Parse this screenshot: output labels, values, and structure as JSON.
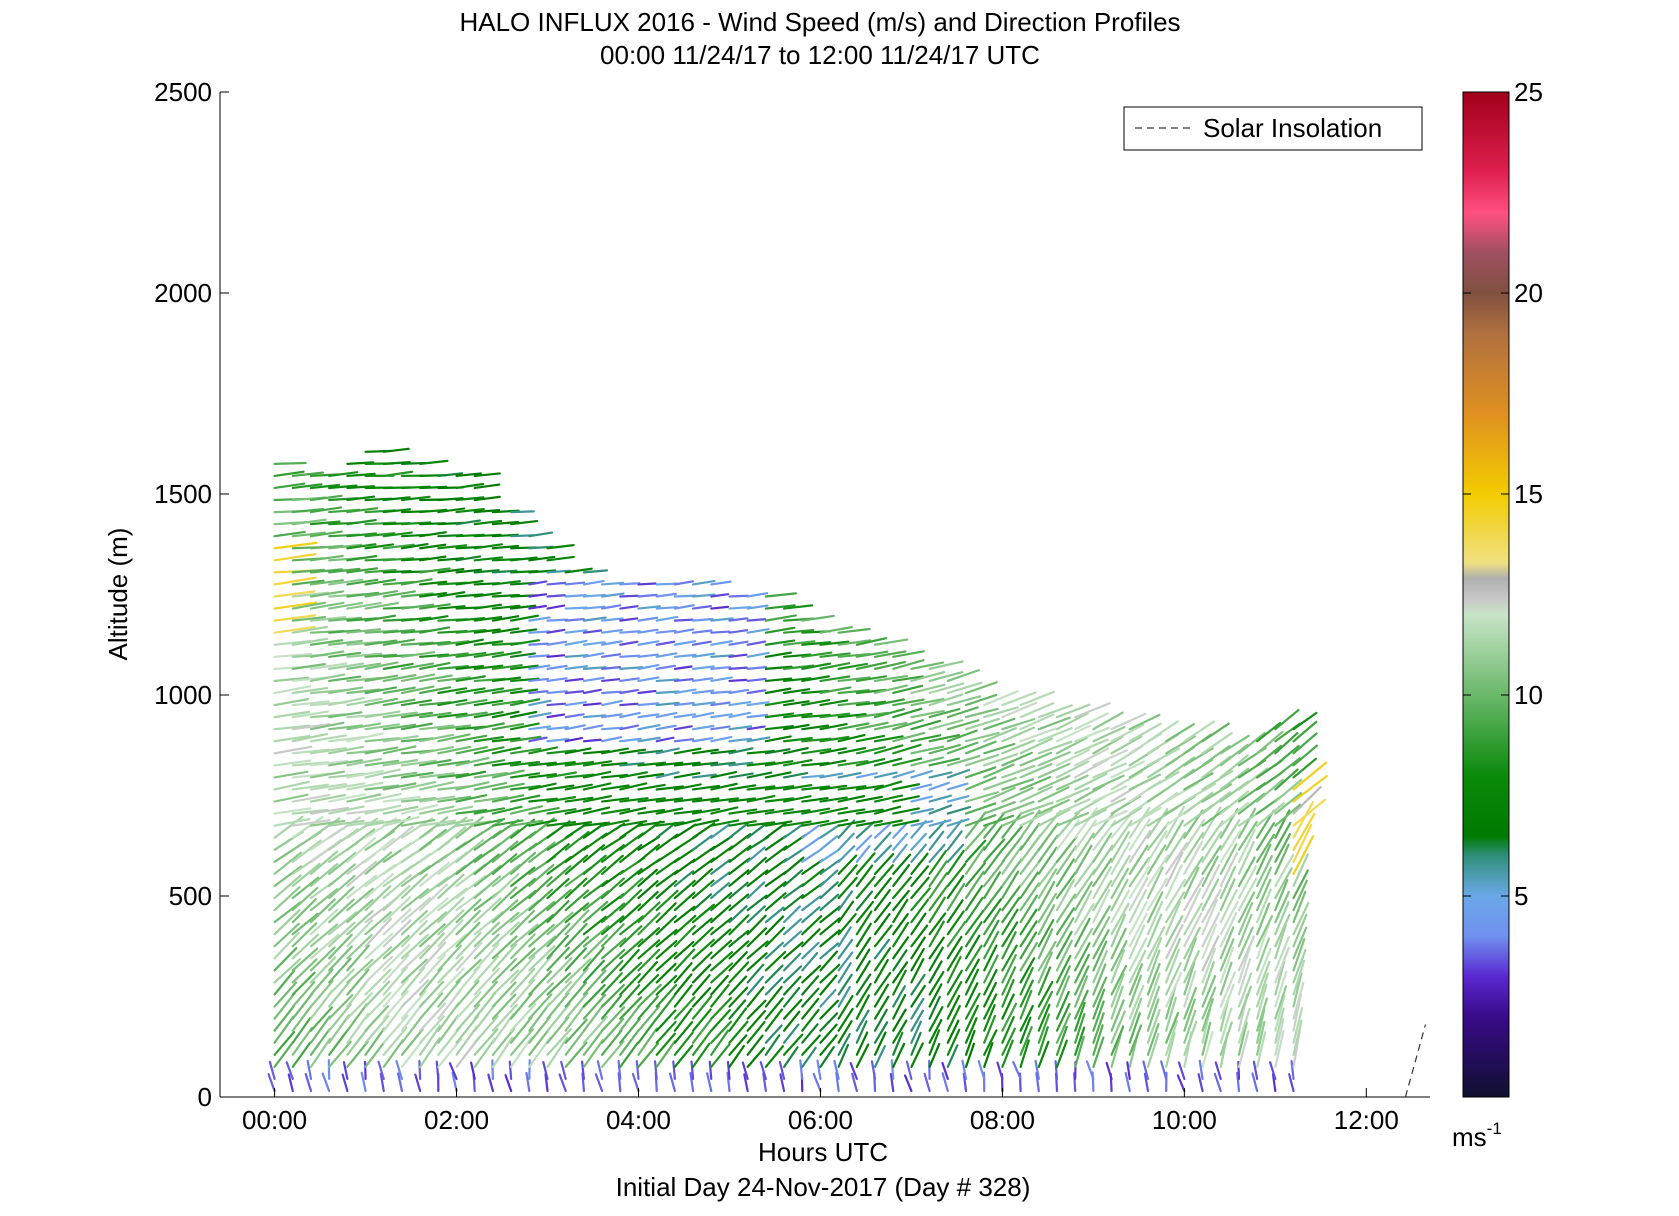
{
  "chart_data": {
    "type": "vector-field",
    "title": "HALO INFLUX 2016 - Wind Speed (m/s) and Direction Profiles",
    "subtitle": "00:00 11/24/17 to 12:00 11/24/17  UTC",
    "xlabel": "Hours UTC",
    "footer": "Initial Day 24-Nov-2017 (Day # 328)",
    "ylabel": "Altitude (m)",
    "x_ticks": [
      {
        "hour": 0,
        "label": "00:00"
      },
      {
        "hour": 2,
        "label": "02:00"
      },
      {
        "hour": 4,
        "label": "04:00"
      },
      {
        "hour": 6,
        "label": "06:00"
      },
      {
        "hour": 8,
        "label": "08:00"
      },
      {
        "hour": 10,
        "label": "10:00"
      },
      {
        "hour": 12,
        "label": "12:00"
      }
    ],
    "y_ticks": [
      {
        "value": 0,
        "label": "0"
      },
      {
        "value": 500,
        "label": "500"
      },
      {
        "value": 1000,
        "label": "1000"
      },
      {
        "value": 1500,
        "label": "1500"
      },
      {
        "value": 2000,
        "label": "2000"
      },
      {
        "value": 2500,
        "label": "2500"
      }
    ],
    "xlim": [
      -0.6,
      12.7
    ],
    "ylim": [
      0,
      2500
    ],
    "legend": {
      "label": "Solar Insolation",
      "placement": "top-right",
      "line_style": "dashed"
    },
    "solar_insolation": {
      "points": [
        [
          12.43,
          0
        ],
        [
          12.65,
          180
        ]
      ],
      "color": "#333333"
    },
    "colorbar": {
      "range": [
        0,
        25
      ],
      "ticks": [
        {
          "value": 5,
          "label": "5"
        },
        {
          "value": 10,
          "label": "10"
        },
        {
          "value": 15,
          "label": "15"
        },
        {
          "value": 20,
          "label": "20"
        },
        {
          "value": 25,
          "label": "25"
        }
      ],
      "unit": "ms",
      "unit_exponent": "-1",
      "stops": [
        {
          "v": 0,
          "c": "#101030"
        },
        {
          "v": 2,
          "c": "#3a0a8a"
        },
        {
          "v": 3,
          "c": "#5a28d0"
        },
        {
          "v": 4,
          "c": "#7090f0"
        },
        {
          "v": 5,
          "c": "#6aa8e8"
        },
        {
          "v": 6,
          "c": "#2f8f7a"
        },
        {
          "v": 6.5,
          "c": "#007a00"
        },
        {
          "v": 8,
          "c": "#0b8a0b"
        },
        {
          "v": 10,
          "c": "#6ab86a"
        },
        {
          "v": 12,
          "c": "#c8e4c8"
        },
        {
          "v": 12.4,
          "c": "#c8c8c8"
        },
        {
          "v": 12.9,
          "c": "#b0b0b0"
        },
        {
          "v": 13.3,
          "c": "#f0e080"
        },
        {
          "v": 15,
          "c": "#f2cc00"
        },
        {
          "v": 17,
          "c": "#e09020"
        },
        {
          "v": 19,
          "c": "#b07040"
        },
        {
          "v": 20,
          "c": "#805040"
        },
        {
          "v": 21,
          "c": "#a05060"
        },
        {
          "v": 22,
          "c": "#ff5080"
        },
        {
          "v": 23,
          "c": "#e02050"
        },
        {
          "v": 25,
          "c": "#a0001a"
        }
      ]
    },
    "profiles": {
      "start_hour": 0,
      "step_hours": 0.2,
      "count": 60,
      "bottom_altitude": 0,
      "level_spacing_m": 30,
      "top_altitude_m": [
        1590,
        1570,
        1560,
        1560,
        1580,
        1610,
        1630,
        1600,
        1580,
        1570,
        1570,
        1560,
        1480,
        1460,
        1420,
        1380,
        1320,
        1310,
        1300,
        1290,
        1290,
        1290,
        1280,
        1280,
        1280,
        1270,
        1270,
        1260,
        1230,
        1200,
        1180,
        1170,
        1150,
        1130,
        1110,
        1080,
        1070,
        1050,
        1020,
        1000,
        990,
        980,
        970,
        960,
        950,
        940,
        930,
        920,
        910,
        900,
        900,
        890,
        880,
        880,
        900,
        920,
        920,
        0,
        0,
        0
      ],
      "max_speed_m_s": 16
    }
  }
}
